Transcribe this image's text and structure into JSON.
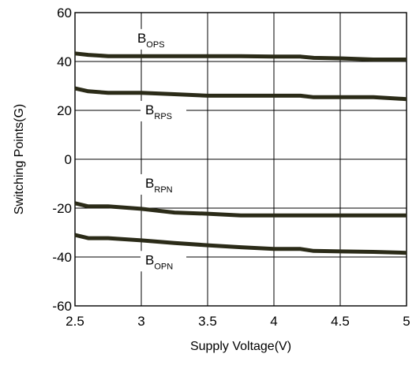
{
  "chart_data": {
    "type": "line",
    "title": "",
    "xlabel": "Supply Voltage(V)",
    "ylabel": "Switching Points(G)",
    "xlim": [
      2.5,
      5
    ],
    "ylim": [
      -60,
      60
    ],
    "xticks": [
      2.5,
      3,
      3.5,
      4,
      4.5,
      5
    ],
    "xtick_labels": [
      "2.5",
      "3",
      "3.5",
      "4",
      "4.5",
      "5"
    ],
    "yticks": [
      -60,
      -40,
      -20,
      0,
      20,
      40,
      60
    ],
    "ytick_labels": [
      "-60",
      "-40",
      "-20",
      "0",
      "20",
      "40",
      "60"
    ],
    "grid": true,
    "line_color": "#2b2b18",
    "x": [
      2.5,
      2.6,
      2.75,
      3.0,
      3.25,
      3.5,
      3.75,
      4.0,
      4.2,
      4.3,
      4.5,
      4.75,
      5.0
    ],
    "series": [
      {
        "name": "BOPS",
        "values": [
          43.3,
          42.7,
          42.2,
          42.2,
          42.2,
          42.2,
          42.2,
          42.0,
          42.0,
          41.5,
          41.3,
          40.8,
          40.8
        ]
      },
      {
        "name": "BRPS",
        "values": [
          29.0,
          27.8,
          27.2,
          27.2,
          26.6,
          26.0,
          26.0,
          26.0,
          26.0,
          25.4,
          25.4,
          25.4,
          24.6
        ]
      },
      {
        "name": "BRPN",
        "values": [
          -18.0,
          -19.3,
          -19.3,
          -20.3,
          -21.8,
          -22.3,
          -23.0,
          -23.0,
          -23.0,
          -23.0,
          -23.0,
          -23.0,
          -23.0
        ]
      },
      {
        "name": "BOPN",
        "values": [
          -31.0,
          -32.3,
          -32.3,
          -33.2,
          -34.3,
          -35.2,
          -36.0,
          -36.7,
          -36.7,
          -37.5,
          -37.7,
          -37.9,
          -38.3
        ]
      }
    ],
    "annotations": [
      {
        "main": "B",
        "sub": "OPS",
        "x": 2.97,
        "y": 47.8
      },
      {
        "main": "B",
        "sub": "RPS",
        "x": 3.03,
        "y": 18.4
      },
      {
        "main": "B",
        "sub": "RPN",
        "x": 3.03,
        "y": -11.6
      },
      {
        "main": "B",
        "sub": "OPN",
        "x": 3.03,
        "y": -43.0
      }
    ]
  }
}
